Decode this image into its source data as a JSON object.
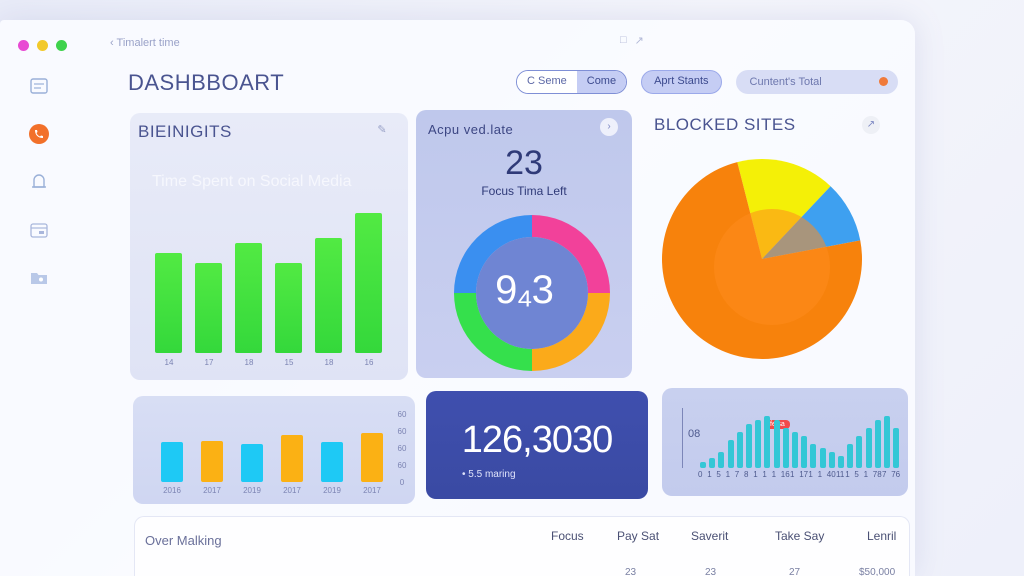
{
  "window": {
    "title": "Timalert time",
    "traffic_lights": [
      "#e84ad3",
      "#f2c92a",
      "#3fd24c"
    ]
  },
  "sidebar": {
    "items": [
      {
        "icon": "document-icon"
      },
      {
        "icon": "phone-icon",
        "active": true,
        "accent": "#f2702a"
      },
      {
        "icon": "bell-icon"
      },
      {
        "icon": "calendar-icon"
      },
      {
        "icon": "folder-icon"
      }
    ]
  },
  "header": {
    "title": "DASHBBOART",
    "segment": {
      "left": "C Seme",
      "right": "Come"
    },
    "button": "Aprt Stants",
    "search_placeholder": "Cuntent's Total"
  },
  "insights_card": {
    "title": "BIEINIGITS",
    "subtitle": "Time Spent on Social Media",
    "bar_color": "#45e23f"
  },
  "focus_card": {
    "title": "Acpu ved.late",
    "value": "23",
    "label": "Focus Tima Left",
    "ring_value": "9₄3"
  },
  "blocked_card": {
    "title": "BLOCKED SITES"
  },
  "mini_bar_card": {
    "bar_colors": [
      "#1ec9f5",
      "#fbb114"
    ]
  },
  "total_card": {
    "value": "126,3030",
    "caption": "• 5.5 maring"
  },
  "histogram_card": {
    "badge": "felsa",
    "left_label": "08"
  },
  "table": {
    "section_label": "Over Malking",
    "columns": [
      "Focus",
      "Pay Sat",
      "Saverit",
      "Take Say",
      "Lenril"
    ],
    "row_values": [
      "23",
      "23",
      "27",
      "$50,000"
    ]
  },
  "chart_data": [
    {
      "type": "bar",
      "title": "Time Spent on Social Media",
      "categories": [
        "14",
        "17",
        "18",
        "15",
        "18",
        "16"
      ],
      "values": [
        100,
        90,
        110,
        90,
        115,
        140
      ],
      "ylim": [
        0,
        160
      ]
    },
    {
      "type": "pie",
      "title": "",
      "slices": [
        {
          "label": "",
          "value": 25,
          "color": "#f2419a"
        },
        {
          "label": "",
          "value": 25,
          "color": "#fbaa1a"
        },
        {
          "label": "",
          "value": 25,
          "color": "#35e04c"
        },
        {
          "label": "",
          "value": 25,
          "color": "#3a8ff0"
        }
      ],
      "donut": true
    },
    {
      "type": "pie",
      "title": "BLOCKED SITES",
      "slices": [
        {
          "label": "",
          "value": 16,
          "color": "#f4f007"
        },
        {
          "label": "",
          "value": 10,
          "color": "#3ea0f0"
        },
        {
          "label": "",
          "value": 74,
          "color": "#f7820c"
        }
      ]
    },
    {
      "type": "bar",
      "categories": [
        "2016",
        "2017",
        "2019",
        "2017",
        "2019",
        "2017"
      ],
      "values": [
        40,
        41,
        38,
        47,
        40,
        49
      ],
      "ylim": [
        0,
        60
      ],
      "yticks": [
        "60",
        "60",
        "60",
        "60",
        "0"
      ]
    },
    {
      "type": "bar",
      "categories": [
        "0",
        "1",
        "5",
        "1",
        "7",
        "8",
        "1",
        "1",
        "1",
        "16",
        "1",
        "17",
        "1",
        "1",
        "40",
        "11",
        "1",
        "5",
        "1",
        "78",
        "7",
        "76"
      ],
      "values": [
        3,
        5,
        8,
        14,
        18,
        22,
        24,
        26,
        24,
        20,
        18,
        16,
        12,
        10,
        8,
        6,
        12,
        16,
        20,
        24,
        26,
        20
      ],
      "ylim": [
        0,
        30
      ]
    }
  ]
}
